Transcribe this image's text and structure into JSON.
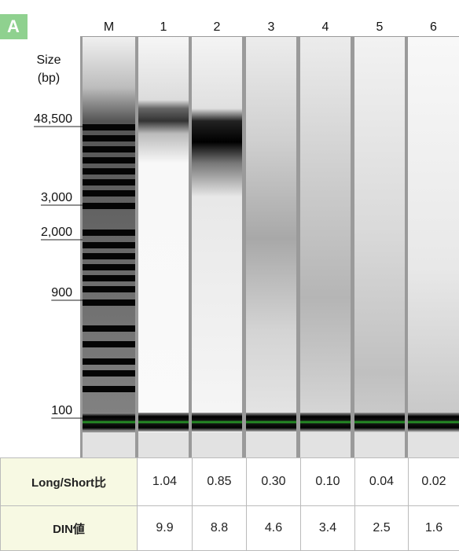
{
  "panel": "A",
  "lanes": [
    "M",
    "1",
    "2",
    "3",
    "4",
    "5",
    "6"
  ],
  "size_label": [
    "Size",
    "(bp)"
  ],
  "markers": [
    "48,500",
    "3,000",
    "2,000",
    "900",
    "100"
  ],
  "table": {
    "rows": [
      {
        "header": "Long/Short比",
        "cells": [
          "1.04",
          "0.85",
          "0.30",
          "0.10",
          "0.04",
          "0.02"
        ]
      },
      {
        "header": "DIN値",
        "cells": [
          "9.9",
          "8.8",
          "4.6",
          "3.4",
          "2.5",
          "1.6"
        ]
      }
    ]
  }
}
